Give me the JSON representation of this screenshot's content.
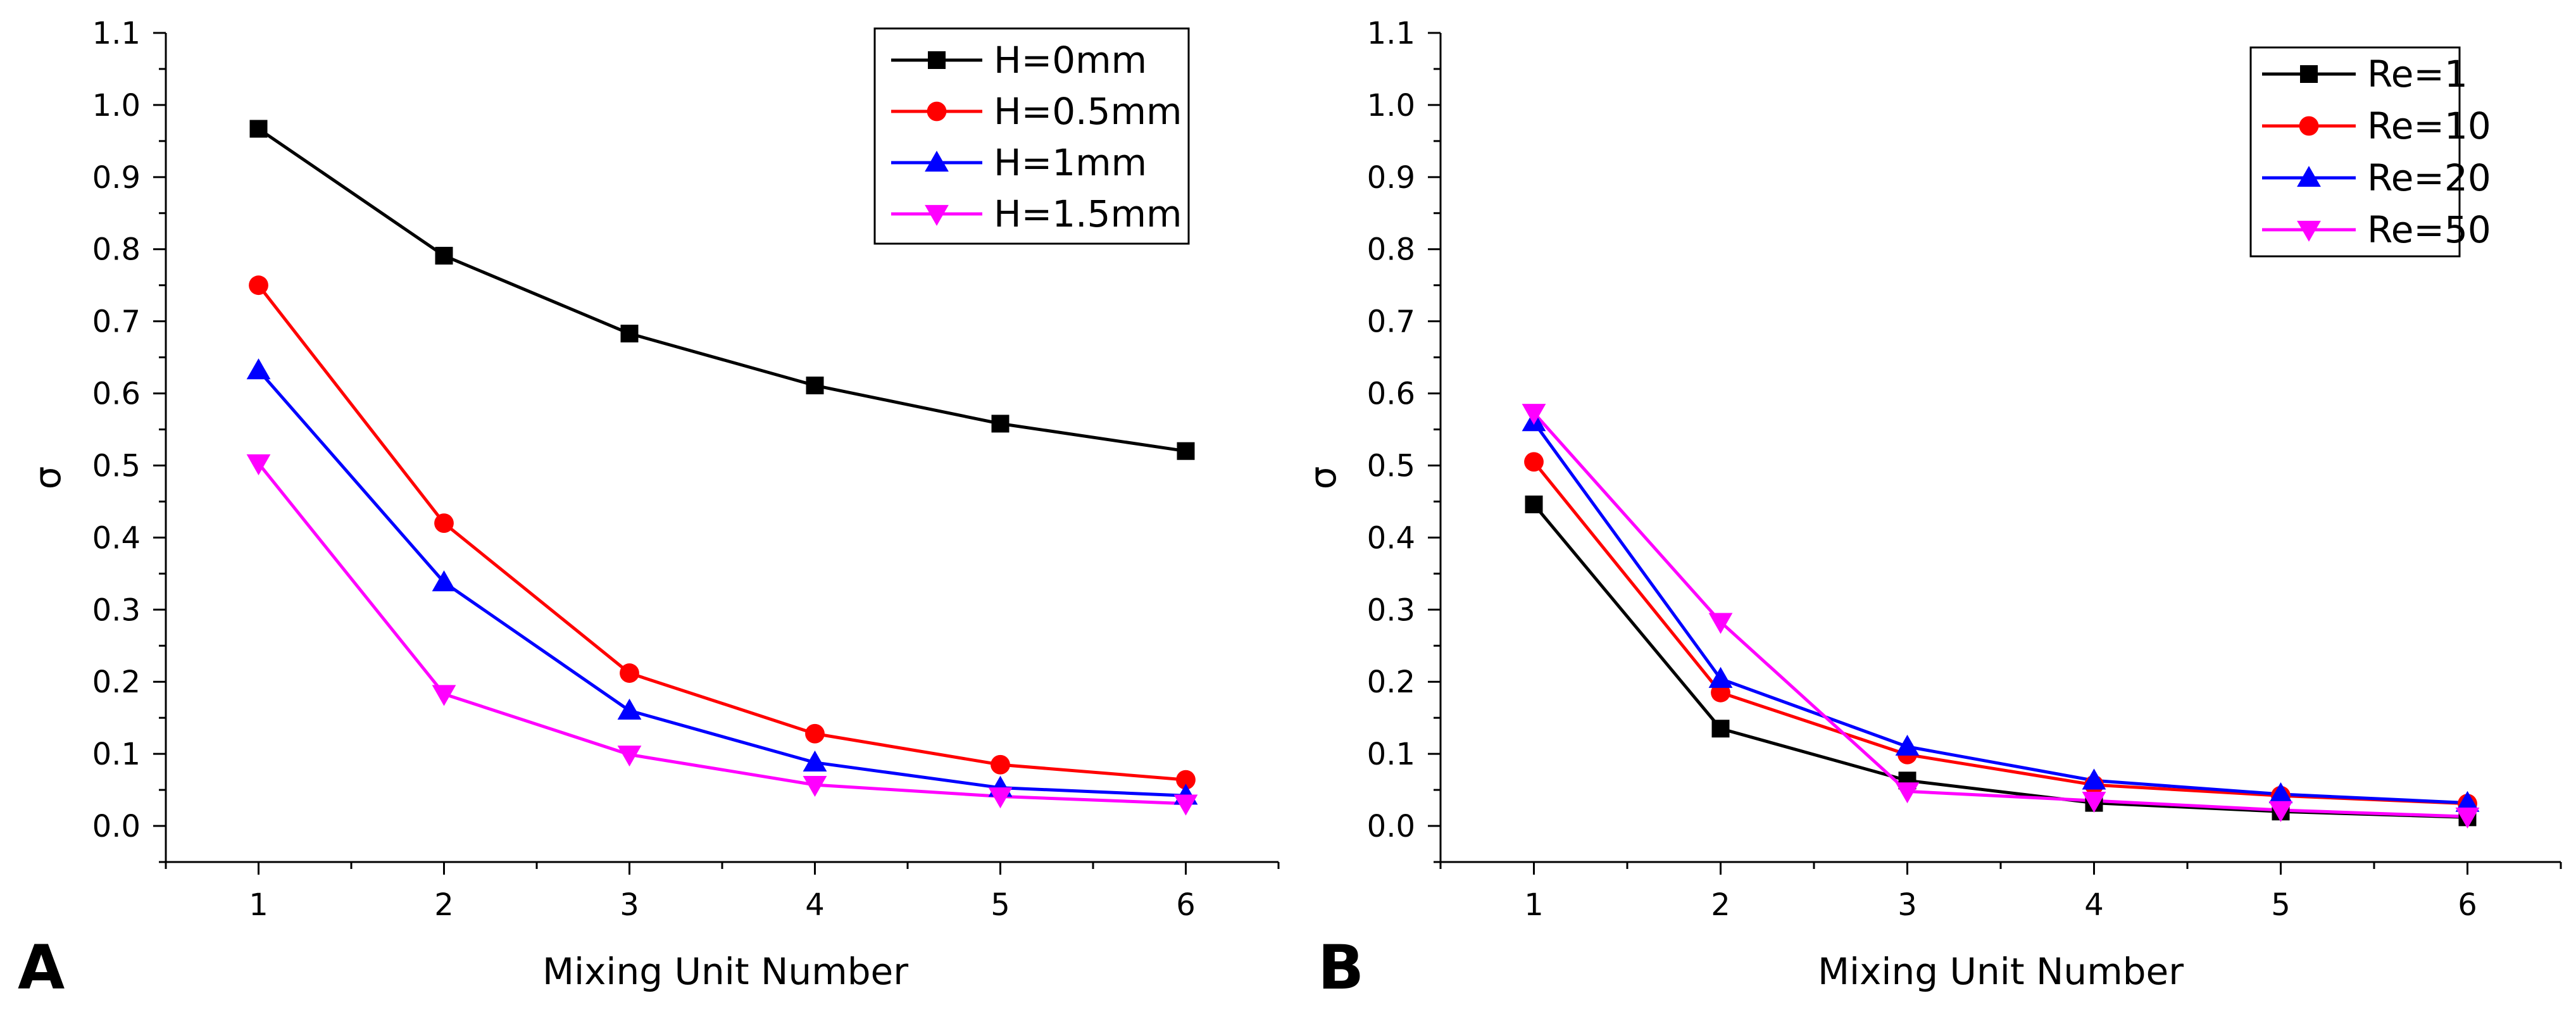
{
  "chart_data": [
    {
      "type": "line",
      "panel_label": "A",
      "title": "",
      "xlabel": "Mixing Unit Number",
      "ylabel": "σ",
      "x": [
        1,
        2,
        3,
        4,
        5,
        6
      ],
      "xlim": [
        0.5,
        6.5
      ],
      "ylim": [
        -0.05,
        1.1
      ],
      "yticks": [
        "0.0",
        "0.1",
        "0.2",
        "0.3",
        "0.4",
        "0.5",
        "0.6",
        "0.7",
        "0.8",
        "0.9",
        "1.0",
        "1.1"
      ],
      "xticks": [
        "1",
        "2",
        "3",
        "4",
        "5",
        "6"
      ],
      "legend_position": "top-right",
      "grid": false,
      "series": [
        {
          "name": "H=0mm",
          "color": "#000000",
          "marker": "square",
          "values": [
            0.967,
            0.791,
            0.683,
            0.611,
            0.558,
            0.52
          ]
        },
        {
          "name": "H=0.5mm",
          "color": "#ff0000",
          "marker": "circle",
          "values": [
            0.75,
            0.42,
            0.212,
            0.128,
            0.085,
            0.064
          ]
        },
        {
          "name": "H=1mm",
          "color": "#0000ff",
          "marker": "triangle-up",
          "values": [
            0.632,
            0.338,
            0.16,
            0.088,
            0.053,
            0.042
          ]
        },
        {
          "name": "H=1.5mm",
          "color": "#ff00ff",
          "marker": "triangle-down",
          "values": [
            0.503,
            0.183,
            0.099,
            0.057,
            0.041,
            0.031
          ]
        }
      ]
    },
    {
      "type": "line",
      "panel_label": "B",
      "title": "",
      "xlabel": "Mixing Unit Number",
      "ylabel": "σ",
      "x": [
        1,
        2,
        3,
        4,
        5,
        6
      ],
      "xlim": [
        0.5,
        6.5
      ],
      "ylim": [
        -0.05,
        1.1
      ],
      "yticks": [
        "0.0",
        "0.1",
        "0.2",
        "0.3",
        "0.4",
        "0.5",
        "0.6",
        "0.7",
        "0.8",
        "0.9",
        "1.0",
        "1.1"
      ],
      "xticks": [
        "1",
        "2",
        "3",
        "4",
        "5",
        "6"
      ],
      "legend_position": "top-right",
      "grid": false,
      "series": [
        {
          "name": "Re=1",
          "color": "#000000",
          "marker": "square",
          "values": [
            0.446,
            0.135,
            0.063,
            0.032,
            0.02,
            0.012
          ]
        },
        {
          "name": "Re=10",
          "color": "#ff0000",
          "marker": "circle",
          "values": [
            0.505,
            0.185,
            0.099,
            0.057,
            0.042,
            0.031
          ]
        },
        {
          "name": "Re=20",
          "color": "#0000ff",
          "marker": "triangle-up",
          "values": [
            0.56,
            0.204,
            0.11,
            0.063,
            0.044,
            0.032
          ]
        },
        {
          "name": "Re=50",
          "color": "#ff00ff",
          "marker": "triangle-down",
          "values": [
            0.573,
            0.283,
            0.048,
            0.035,
            0.022,
            0.013
          ]
        }
      ]
    }
  ]
}
